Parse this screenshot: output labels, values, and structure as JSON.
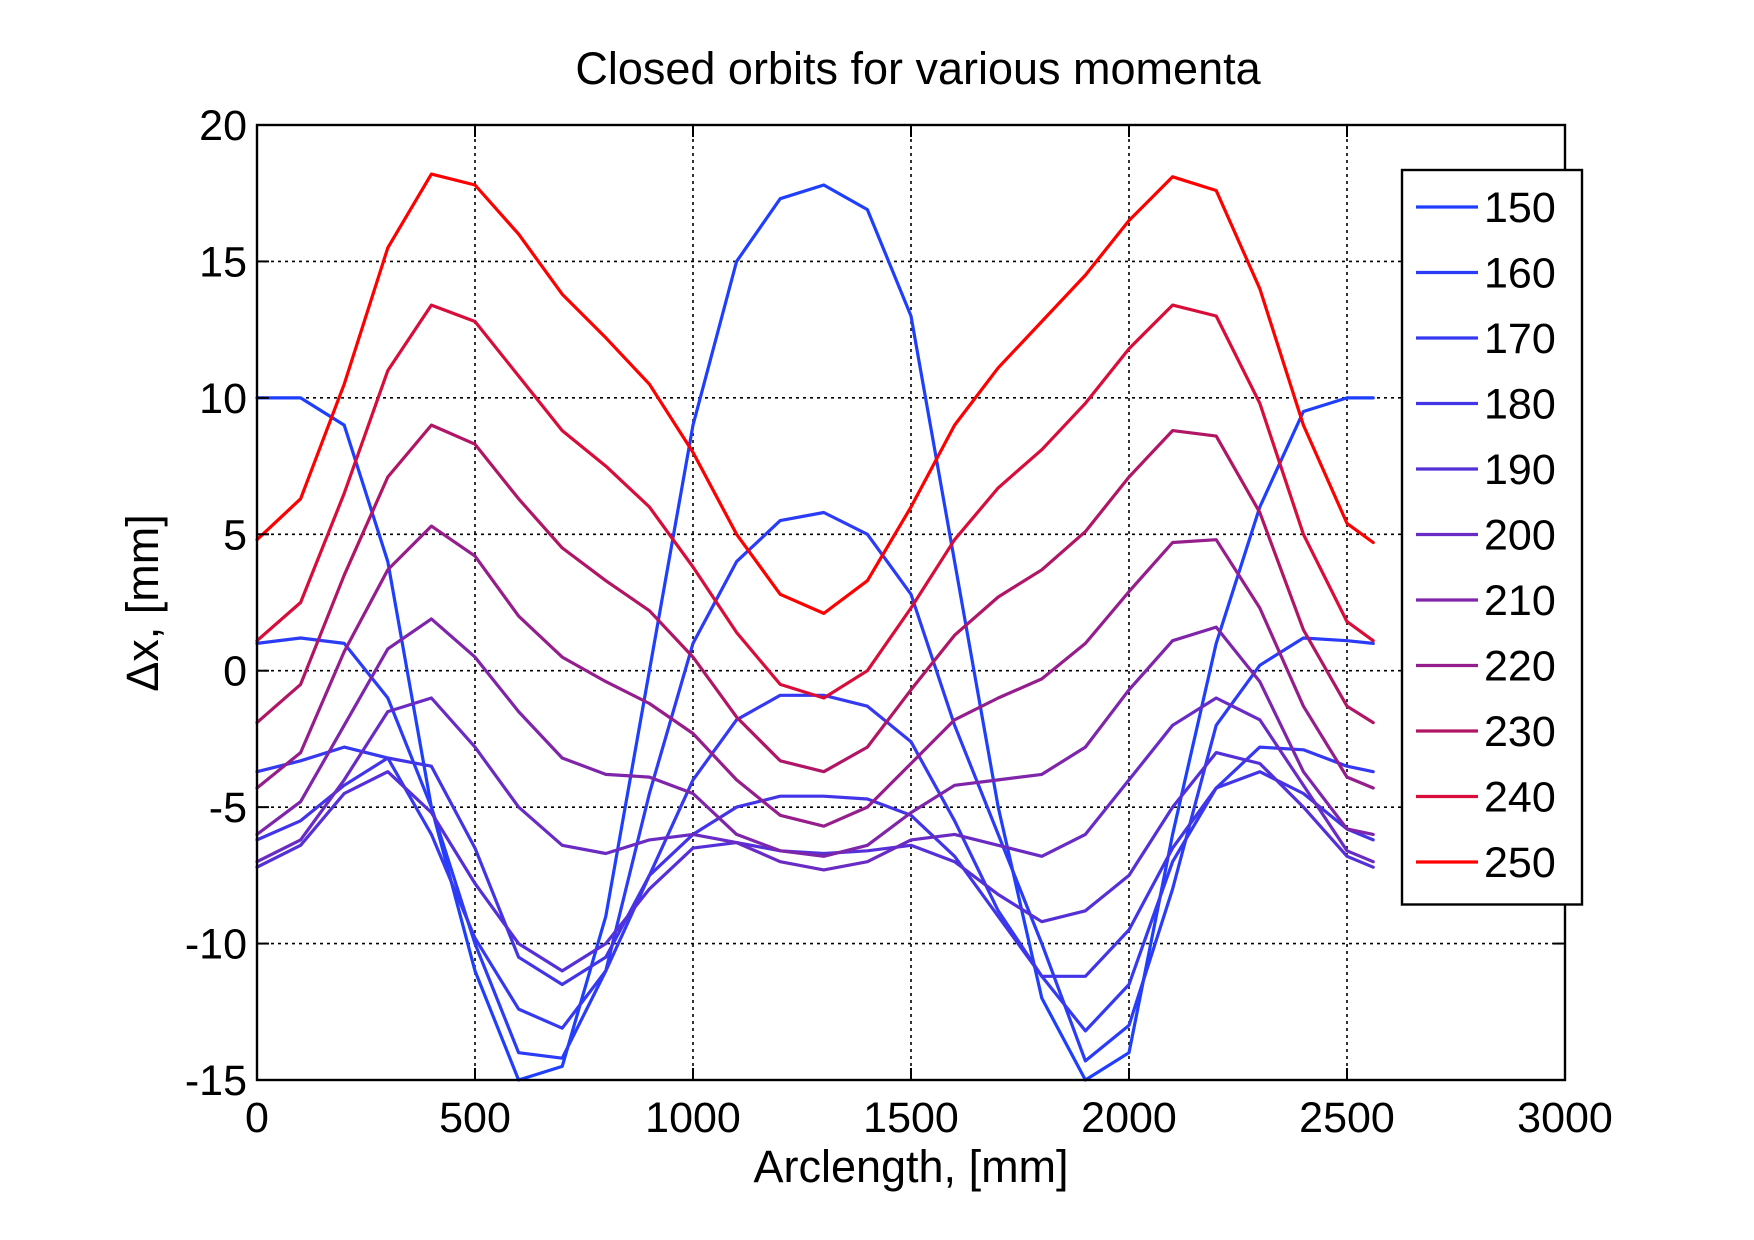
{
  "chart_data": {
    "type": "line",
    "title": "Closed orbits for various momenta",
    "xlabel": "Arclength, [mm]",
    "ylabel": "Δx, [mm]",
    "xlim": [
      0,
      3000
    ],
    "ylim": [
      -15,
      20
    ],
    "xticks": [
      0,
      500,
      1000,
      1500,
      2000,
      2500,
      3000
    ],
    "yticks": [
      -15,
      -10,
      -5,
      0,
      5,
      10,
      15,
      20
    ],
    "grid": true,
    "legend_position": "top-right",
    "x": [
      0,
      100,
      200,
      300,
      400,
      500,
      600,
      700,
      800,
      900,
      1000,
      1100,
      1200,
      1300,
      1400,
      1500,
      1600,
      1700,
      1800,
      1900,
      2000,
      2100,
      2200,
      2300,
      2400,
      2500,
      2560
    ],
    "series": [
      {
        "name": "150",
        "color": "#1f3fff",
        "values": [
          10,
          10,
          9,
          4,
          -5,
          -11,
          -15,
          -14.5,
          -9,
          0,
          9,
          15,
          17.3,
          17.8,
          16.9,
          13,
          4,
          -5,
          -12,
          -15,
          -14,
          -6,
          1,
          6,
          9.5,
          10,
          10
        ]
      },
      {
        "name": "160",
        "color": "#2a3cf8",
        "values": [
          1,
          1.2,
          1,
          -1,
          -5,
          -10,
          -14,
          -14.2,
          -11,
          -4.5,
          1,
          4,
          5.5,
          5.8,
          5,
          2.8,
          -2,
          -6,
          -10,
          -14.3,
          -13,
          -8,
          -2,
          0.2,
          1.2,
          1.1,
          1
        ]
      },
      {
        "name": "170",
        "color": "#3539f1",
        "values": [
          -3.7,
          -3.3,
          -2.8,
          -3.2,
          -6,
          -9.8,
          -12.4,
          -13.1,
          -11,
          -7.5,
          -4,
          -1.8,
          -0.9,
          -0.9,
          -1.3,
          -2.6,
          -5.5,
          -8.8,
          -11.2,
          -13.2,
          -11.5,
          -7,
          -4.3,
          -2.8,
          -2.9,
          -3.5,
          -3.7
        ]
      },
      {
        "name": "180",
        "color": "#4235e8",
        "values": [
          -6.2,
          -5.5,
          -4.2,
          -3.2,
          -3.5,
          -6.5,
          -10.5,
          -11.5,
          -10.5,
          -7.5,
          -6,
          -5,
          -4.6,
          -4.6,
          -4.7,
          -5.3,
          -6.8,
          -9,
          -11.2,
          -11.2,
          -9.5,
          -6.5,
          -4.3,
          -3.7,
          -4.5,
          -5.8,
          -6.2
        ]
      },
      {
        "name": "190",
        "color": "#5530d8",
        "values": [
          -7.2,
          -6.4,
          -4.5,
          -3.7,
          -5.2,
          -7.8,
          -10,
          -11,
          -10,
          -8,
          -6.5,
          -6.3,
          -6.6,
          -6.7,
          -6.6,
          -6.4,
          -7,
          -8.2,
          -9.2,
          -8.8,
          -7.5,
          -5,
          -3,
          -3.4,
          -5,
          -6.8,
          -7.2
        ]
      },
      {
        "name": "200",
        "color": "#6a2bc4",
        "values": [
          -7,
          -6.2,
          -4,
          -1.5,
          -1,
          -2.8,
          -5,
          -6.4,
          -6.7,
          -6.2,
          -6,
          -6.3,
          -7,
          -7.3,
          -7,
          -6.2,
          -6,
          -6.4,
          -6.8,
          -6,
          -4,
          -2,
          -1,
          -1.8,
          -4.2,
          -6.6,
          -7
        ]
      },
      {
        "name": "210",
        "color": "#7e25aa",
        "values": [
          -6,
          -4.8,
          -2,
          0.8,
          1.9,
          0.5,
          -1.5,
          -3.2,
          -3.8,
          -3.9,
          -4.5,
          -6,
          -6.6,
          -6.8,
          -6.4,
          -5.2,
          -4.2,
          -4,
          -3.8,
          -2.8,
          -0.7,
          1.1,
          1.6,
          -0.4,
          -3.7,
          -5.8,
          -6
        ]
      },
      {
        "name": "220",
        "color": "#951e8c",
        "values": [
          -4.3,
          -3,
          0.7,
          3.7,
          5.3,
          4.2,
          2,
          0.5,
          -0.4,
          -1.2,
          -2.3,
          -4,
          -5.3,
          -5.7,
          -5,
          -3.4,
          -1.8,
          -1,
          -0.3,
          1,
          2.9,
          4.7,
          4.8,
          2.3,
          -1.3,
          -3.9,
          -4.3
        ]
      },
      {
        "name": "230",
        "color": "#b01665",
        "values": [
          -1.9,
          -0.5,
          3.5,
          7.1,
          9,
          8.3,
          6.3,
          4.5,
          3.3,
          2.2,
          0.5,
          -1.7,
          -3.3,
          -3.7,
          -2.8,
          -0.7,
          1.3,
          2.7,
          3.7,
          5.1,
          7.1,
          8.8,
          8.6,
          5.8,
          1.5,
          -1.3,
          -1.9
        ]
      },
      {
        "name": "240",
        "color": "#d90d3a",
        "values": [
          1.1,
          2.5,
          6.5,
          11,
          13.4,
          12.8,
          10.8,
          8.8,
          7.5,
          6,
          3.8,
          1.4,
          -0.5,
          -1,
          0,
          2.3,
          4.8,
          6.7,
          8.1,
          9.8,
          11.8,
          13.4,
          13,
          9.8,
          5,
          1.8,
          1.1
        ]
      },
      {
        "name": "250",
        "color": "#ff0000",
        "values": [
          4.8,
          6.3,
          10.5,
          15.5,
          18.2,
          17.8,
          16,
          13.8,
          12.2,
          10.5,
          8,
          5,
          2.8,
          2.1,
          3.3,
          6,
          9,
          11.1,
          12.8,
          14.5,
          16.5,
          18.1,
          17.6,
          14,
          9,
          5.4,
          4.7
        ]
      }
    ]
  }
}
